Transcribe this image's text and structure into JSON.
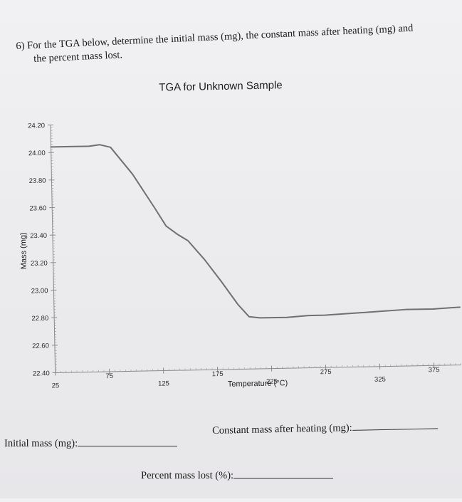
{
  "question": {
    "number": "6)",
    "text_line1": "For the TGA below, determine the initial mass (mg), the constant mass after heating (mg) and",
    "text_line2": "the percent mass lost."
  },
  "chart_data": {
    "type": "line",
    "title": "TGA for Unknown Sample",
    "xlabel": "Temperature (°C)",
    "ylabel": "Mass (mg)",
    "x_ticks": [
      "25",
      "75",
      "125",
      "175",
      "225",
      "275",
      "325",
      "375"
    ],
    "y_ticks": [
      "24.20",
      "24.00",
      "23.80",
      "23.60",
      "23.40",
      "23.20",
      "23.00",
      "22.80",
      "22.60",
      "22.40"
    ],
    "xlim": [
      25,
      400
    ],
    "ylim": [
      22.4,
      24.2
    ],
    "series": [
      {
        "x": [
          25,
          60,
          70,
          80,
          100,
          120,
          130,
          140,
          150,
          165,
          180,
          195,
          205,
          215,
          240,
          260,
          275,
          300,
          325,
          350,
          375,
          400
        ],
        "y": [
          24.04,
          24.04,
          24.05,
          24.03,
          23.83,
          23.58,
          23.45,
          23.39,
          23.34,
          23.2,
          23.04,
          22.87,
          22.78,
          22.77,
          22.77,
          22.78,
          22.78,
          22.79,
          22.8,
          22.81,
          22.81,
          22.82
        ]
      }
    ],
    "grid": false,
    "line_color": "#707070"
  },
  "answers": {
    "initial_mass_label": "Initial mass (mg):",
    "constant_mass_label": "Constant mass after heating (mg):",
    "percent_lost_label": "Percent mass lost (%):"
  }
}
